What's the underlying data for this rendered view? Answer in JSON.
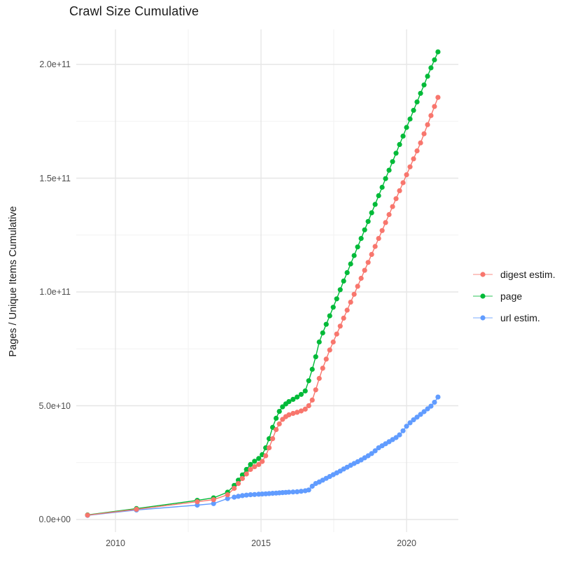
{
  "title": "Crawl Size Cumulative",
  "y_axis": {
    "title": "Pages / Unique Items Cumulative",
    "ticks": [
      {
        "label": "0.0e+00",
        "value_e9": 0
      },
      {
        "label": "5.0e+10",
        "value_e9": 50
      },
      {
        "label": "1.0e+11",
        "value_e9": 100
      },
      {
        "label": "1.5e+11",
        "value_e9": 150
      },
      {
        "label": "2.0e+11",
        "value_e9": 200
      }
    ],
    "minor_values_e9": [
      25,
      75,
      125,
      175
    ]
  },
  "x_axis": {
    "ticks": [
      {
        "label": "2010",
        "year": 2010
      },
      {
        "label": "2015",
        "year": 2015
      },
      {
        "label": "2020",
        "year": 2020
      }
    ],
    "minor_years": [
      2012.5,
      2017.5
    ]
  },
  "legend": {
    "items": [
      {
        "label": "digest estim.",
        "color": "#F8766D"
      },
      {
        "label": "page",
        "color": "#00BA38"
      },
      {
        "label": "url estim.",
        "color": "#619CFF"
      }
    ]
  },
  "colors": {
    "grid_major": "#e6e6e6",
    "grid_minor": "#f2f2f2",
    "tick_text": "#4d4d4d",
    "text": "#1a1a1a",
    "background": "#ffffff"
  },
  "chart_data": {
    "type": "line",
    "title": "Crawl Size Cumulative",
    "xlabel": "",
    "ylabel": "Pages / Unique Items Cumulative",
    "x_unit": "year (decimal)",
    "y_unit": "cumulative items, billions (1e9)",
    "xlim": [
      2008.65,
      2021.78
    ],
    "ylim_e9": [
      -6,
      216
    ],
    "grid": true,
    "legend_position": "right",
    "marker": "point",
    "series": [
      {
        "name": "url estim.",
        "color": "#619CFF",
        "points": [
          [
            2009.04,
            1.8
          ],
          [
            2010.72,
            4.2
          ],
          [
            2012.81,
            6.3
          ],
          [
            2013.37,
            7.0
          ],
          [
            2013.85,
            9.2
          ],
          [
            2014.08,
            9.8
          ],
          [
            2014.22,
            10.2
          ],
          [
            2014.36,
            10.5
          ],
          [
            2014.5,
            10.7
          ],
          [
            2014.64,
            10.9
          ],
          [
            2014.78,
            11.0
          ],
          [
            2014.92,
            11.1
          ],
          [
            2015.04,
            11.2
          ],
          [
            2015.16,
            11.3
          ],
          [
            2015.28,
            11.4
          ],
          [
            2015.4,
            11.5
          ],
          [
            2015.52,
            11.6
          ],
          [
            2015.63,
            11.7
          ],
          [
            2015.74,
            11.8
          ],
          [
            2015.85,
            11.9
          ],
          [
            2015.96,
            12.0
          ],
          [
            2016.1,
            12.1
          ],
          [
            2016.24,
            12.2
          ],
          [
            2016.38,
            12.4
          ],
          [
            2016.52,
            12.6
          ],
          [
            2016.64,
            13.0
          ],
          [
            2016.76,
            14.6
          ],
          [
            2016.88,
            15.8
          ],
          [
            2017.0,
            16.5
          ],
          [
            2017.12,
            17.3
          ],
          [
            2017.24,
            18.1
          ],
          [
            2017.36,
            18.9
          ],
          [
            2017.48,
            19.7
          ],
          [
            2017.6,
            20.5
          ],
          [
            2017.72,
            21.3
          ],
          [
            2017.84,
            22.2
          ],
          [
            2017.96,
            23.0
          ],
          [
            2018.08,
            23.8
          ],
          [
            2018.2,
            24.6
          ],
          [
            2018.32,
            25.4
          ],
          [
            2018.44,
            26.2
          ],
          [
            2018.56,
            27.1
          ],
          [
            2018.68,
            28.0
          ],
          [
            2018.8,
            29.0
          ],
          [
            2018.92,
            30.2
          ],
          [
            2019.04,
            31.5
          ],
          [
            2019.16,
            32.4
          ],
          [
            2019.28,
            33.3
          ],
          [
            2019.4,
            34.2
          ],
          [
            2019.52,
            35.1
          ],
          [
            2019.64,
            36.0
          ],
          [
            2019.76,
            37.2
          ],
          [
            2019.88,
            39.0
          ],
          [
            2020.0,
            41.0
          ],
          [
            2020.12,
            42.5
          ],
          [
            2020.24,
            43.8
          ],
          [
            2020.36,
            45.0
          ],
          [
            2020.48,
            46.2
          ],
          [
            2020.6,
            47.4
          ],
          [
            2020.72,
            48.6
          ],
          [
            2020.84,
            49.8
          ],
          [
            2020.96,
            51.5
          ],
          [
            2021.08,
            53.8
          ]
        ]
      },
      {
        "name": "page",
        "color": "#00BA38",
        "points": [
          [
            2009.04,
            2.0
          ],
          [
            2010.72,
            4.8
          ],
          [
            2012.81,
            8.4
          ],
          [
            2013.37,
            9.5
          ],
          [
            2013.85,
            12.0
          ],
          [
            2014.08,
            15.0
          ],
          [
            2014.22,
            17.3
          ],
          [
            2014.36,
            19.6
          ],
          [
            2014.5,
            22.0
          ],
          [
            2014.64,
            24.2
          ],
          [
            2014.78,
            25.6
          ],
          [
            2014.92,
            26.8
          ],
          [
            2015.04,
            28.5
          ],
          [
            2015.16,
            31.5
          ],
          [
            2015.28,
            35.5
          ],
          [
            2015.4,
            40.5
          ],
          [
            2015.52,
            44.5
          ],
          [
            2015.63,
            47.5
          ],
          [
            2015.74,
            49.5
          ],
          [
            2015.85,
            50.8
          ],
          [
            2015.96,
            51.8
          ],
          [
            2016.1,
            52.8
          ],
          [
            2016.24,
            53.8
          ],
          [
            2016.38,
            55.0
          ],
          [
            2016.52,
            56.5
          ],
          [
            2016.64,
            61.0
          ],
          [
            2016.76,
            66.0
          ],
          [
            2016.88,
            71.5
          ],
          [
            2017.0,
            78.0
          ],
          [
            2017.12,
            82.0
          ],
          [
            2017.24,
            85.8
          ],
          [
            2017.36,
            89.5
          ],
          [
            2017.48,
            93.3
          ],
          [
            2017.6,
            97.0
          ],
          [
            2017.72,
            101.0
          ],
          [
            2017.84,
            104.8
          ],
          [
            2017.96,
            108.5
          ],
          [
            2018.08,
            112.3
          ],
          [
            2018.2,
            116.0
          ],
          [
            2018.32,
            119.8
          ],
          [
            2018.44,
            123.5
          ],
          [
            2018.56,
            127.3
          ],
          [
            2018.68,
            131.0
          ],
          [
            2018.8,
            134.8
          ],
          [
            2018.92,
            138.5
          ],
          [
            2019.04,
            142.3
          ],
          [
            2019.16,
            146.0
          ],
          [
            2019.28,
            149.8
          ],
          [
            2019.4,
            153.5
          ],
          [
            2019.52,
            157.3
          ],
          [
            2019.64,
            161.0
          ],
          [
            2019.76,
            164.8
          ],
          [
            2019.88,
            168.5
          ],
          [
            2020.0,
            172.3
          ],
          [
            2020.12,
            176.0
          ],
          [
            2020.24,
            179.8
          ],
          [
            2020.36,
            183.5
          ],
          [
            2020.48,
            187.3
          ],
          [
            2020.6,
            191.0
          ],
          [
            2020.72,
            194.8
          ],
          [
            2020.84,
            198.5
          ],
          [
            2020.96,
            202.0
          ],
          [
            2021.08,
            205.5
          ]
        ]
      },
      {
        "name": "digest estim.",
        "color": "#F8766D",
        "points": [
          [
            2009.04,
            1.9
          ],
          [
            2010.72,
            4.5
          ],
          [
            2012.81,
            7.8
          ],
          [
            2013.37,
            8.7
          ],
          [
            2013.85,
            10.9
          ],
          [
            2014.08,
            13.7
          ],
          [
            2014.22,
            15.8
          ],
          [
            2014.36,
            18.0
          ],
          [
            2014.5,
            20.0
          ],
          [
            2014.64,
            22.0
          ],
          [
            2014.78,
            23.2
          ],
          [
            2014.92,
            24.2
          ],
          [
            2015.04,
            25.5
          ],
          [
            2015.16,
            28.0
          ],
          [
            2015.28,
            31.5
          ],
          [
            2015.4,
            35.5
          ],
          [
            2015.52,
            39.5
          ],
          [
            2015.63,
            42.0
          ],
          [
            2015.74,
            44.0
          ],
          [
            2015.85,
            45.2
          ],
          [
            2015.96,
            46.0
          ],
          [
            2016.1,
            46.6
          ],
          [
            2016.24,
            47.1
          ],
          [
            2016.38,
            47.7
          ],
          [
            2016.52,
            48.5
          ],
          [
            2016.64,
            50.0
          ],
          [
            2016.76,
            52.5
          ],
          [
            2016.88,
            57.0
          ],
          [
            2017.0,
            62.0
          ],
          [
            2017.12,
            66.5
          ],
          [
            2017.24,
            70.5
          ],
          [
            2017.36,
            74.5
          ],
          [
            2017.48,
            78.0
          ],
          [
            2017.6,
            81.5
          ],
          [
            2017.72,
            85.0
          ],
          [
            2017.84,
            88.5
          ],
          [
            2017.96,
            92.0
          ],
          [
            2018.08,
            95.5
          ],
          [
            2018.2,
            99.0
          ],
          [
            2018.32,
            102.5
          ],
          [
            2018.44,
            106.0
          ],
          [
            2018.56,
            109.5
          ],
          [
            2018.68,
            113.0
          ],
          [
            2018.8,
            116.5
          ],
          [
            2018.92,
            120.0
          ],
          [
            2019.04,
            123.5
          ],
          [
            2019.16,
            127.0
          ],
          [
            2019.28,
            130.5
          ],
          [
            2019.4,
            134.0
          ],
          [
            2019.52,
            137.5
          ],
          [
            2019.64,
            141.0
          ],
          [
            2019.76,
            144.5
          ],
          [
            2019.88,
            148.0
          ],
          [
            2020.0,
            151.5
          ],
          [
            2020.12,
            155.0
          ],
          [
            2020.24,
            158.5
          ],
          [
            2020.36,
            162.0
          ],
          [
            2020.48,
            165.5
          ],
          [
            2020.6,
            169.5
          ],
          [
            2020.72,
            173.5
          ],
          [
            2020.84,
            177.5
          ],
          [
            2020.96,
            181.5
          ],
          [
            2021.08,
            185.5
          ]
        ]
      }
    ]
  }
}
